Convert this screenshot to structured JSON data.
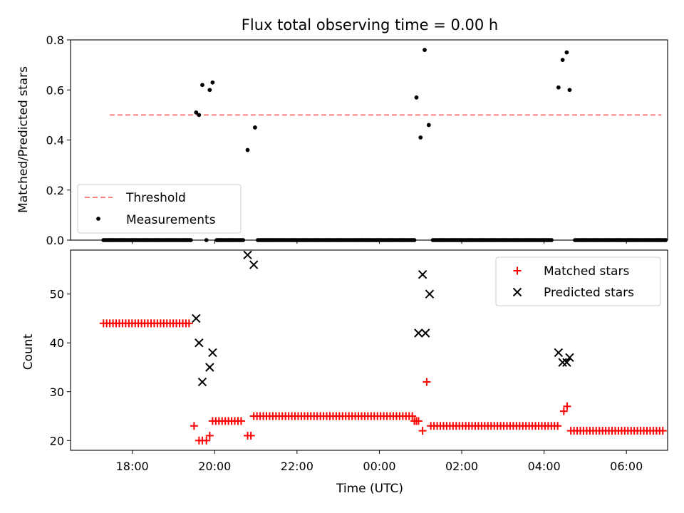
{
  "chart_data": [
    {
      "type": "scatter",
      "title": "Flux total observing time = 0.00 h",
      "xlabel": "",
      "ylabel": "Matched/Predicted stars",
      "xlim_hours": [
        16.5,
        31.0
      ],
      "ylim": [
        0,
        0.8
      ],
      "yticks": [
        0.0,
        0.2,
        0.4,
        0.6,
        0.8
      ],
      "ytick_labels": [
        "0.0",
        "0.2",
        "0.4",
        "0.6",
        "0.8"
      ],
      "legend_position": "lower-left",
      "threshold": {
        "name": "Threshold",
        "value": 0.5,
        "x_start": 17.45,
        "x_end": 30.85,
        "color": "#ff8080",
        "style": "dashed"
      },
      "series": [
        {
          "name": "Measurements",
          "marker": "dot",
          "color": "#000000",
          "points": [
            [
              19.55,
              0.51
            ],
            [
              19.62,
              0.5
            ],
            [
              19.7,
              0.62
            ],
            [
              19.88,
              0.6
            ],
            [
              19.95,
              0.63
            ],
            [
              20.8,
              0.36
            ],
            [
              20.98,
              0.45
            ],
            [
              24.9,
              0.57
            ],
            [
              25.0,
              0.41
            ],
            [
              25.1,
              0.76
            ],
            [
              25.2,
              0.46
            ],
            [
              28.35,
              0.61
            ],
            [
              28.45,
              0.72
            ],
            [
              28.55,
              0.75
            ],
            [
              28.62,
              0.6
            ]
          ],
          "zero_segments": [
            [
              17.3,
              19.45,
              0.04
            ],
            [
              19.8,
              19.8,
              0.1
            ],
            [
              20.05,
              20.7,
              0.04
            ],
            [
              21.05,
              24.85,
              0.04
            ],
            [
              25.3,
              28.2,
              0.04
            ],
            [
              28.75,
              30.95,
              0.04
            ]
          ]
        }
      ]
    },
    {
      "type": "scatter",
      "title": "",
      "xlabel": "Time (UTC)",
      "ylabel": "Count",
      "xlim_hours": [
        16.5,
        31.0
      ],
      "ylim": [
        18,
        59
      ],
      "yticks": [
        20,
        30,
        40,
        50
      ],
      "ytick_labels": [
        "20",
        "30",
        "40",
        "50"
      ],
      "xticks_hours": [
        18,
        20,
        22,
        24,
        26,
        28,
        30
      ],
      "xtick_labels": [
        "18:00",
        "20:00",
        "22:00",
        "00:00",
        "02:00",
        "04:00",
        "06:00"
      ],
      "legend_position": "upper-right",
      "series": [
        {
          "name": "Matched stars",
          "marker": "plus",
          "color": "#ff0000",
          "points": [
            [
              19.5,
              23
            ],
            [
              19.62,
              20
            ],
            [
              19.7,
              20
            ],
            [
              19.8,
              20
            ],
            [
              19.88,
              21
            ],
            [
              20.8,
              21
            ],
            [
              20.88,
              21
            ],
            [
              25.05,
              22
            ],
            [
              25.15,
              32
            ],
            [
              28.48,
              26
            ],
            [
              28.56,
              27
            ]
          ],
          "segments": [
            [
              17.3,
              19.45,
              0.077,
              44
            ],
            [
              19.95,
              20.7,
              0.077,
              24
            ],
            [
              20.95,
              24.85,
              0.077,
              25
            ],
            [
              24.85,
              24.95,
              0.05,
              24
            ],
            [
              25.25,
              28.35,
              0.077,
              23
            ],
            [
              28.65,
              30.95,
              0.077,
              22
            ]
          ]
        },
        {
          "name": "Predicted stars",
          "marker": "x",
          "color": "#000000",
          "points": [
            [
              19.55,
              45
            ],
            [
              19.62,
              40
            ],
            [
              19.7,
              32
            ],
            [
              19.88,
              35
            ],
            [
              19.95,
              38
            ],
            [
              20.8,
              58
            ],
            [
              20.95,
              56
            ],
            [
              24.95,
              42
            ],
            [
              25.05,
              54
            ],
            [
              25.12,
              42
            ],
            [
              25.22,
              50
            ],
            [
              28.35,
              38
            ],
            [
              28.45,
              36
            ],
            [
              28.55,
              36
            ],
            [
              28.62,
              37
            ]
          ]
        }
      ]
    }
  ]
}
